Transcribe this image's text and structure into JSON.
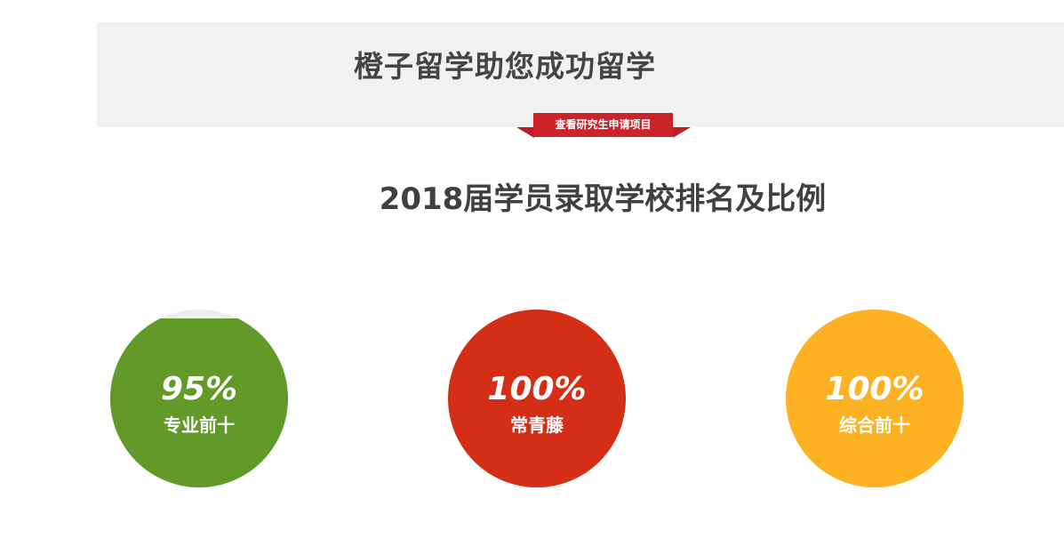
{
  "banner": {
    "title": "橙子留学助您成功留学",
    "button_label": "查看研究生申请项目",
    "ribbon_color": "#cc2229"
  },
  "section": {
    "title": "2018届学员录取学校排名及比例"
  },
  "stats": [
    {
      "value": "95%",
      "label": "专业前十",
      "fraction": 0.95,
      "color": "#629a2a",
      "track_color": "#eeeeee"
    },
    {
      "value": "100%",
      "label": "常青藤",
      "fraction": 1.0,
      "color": "#d42e17",
      "track_color": "#eeeeee"
    },
    {
      "value": "100%",
      "label": "综合前十",
      "fraction": 1.0,
      "color": "#fdb223",
      "track_color": "#eeeeee"
    }
  ]
}
